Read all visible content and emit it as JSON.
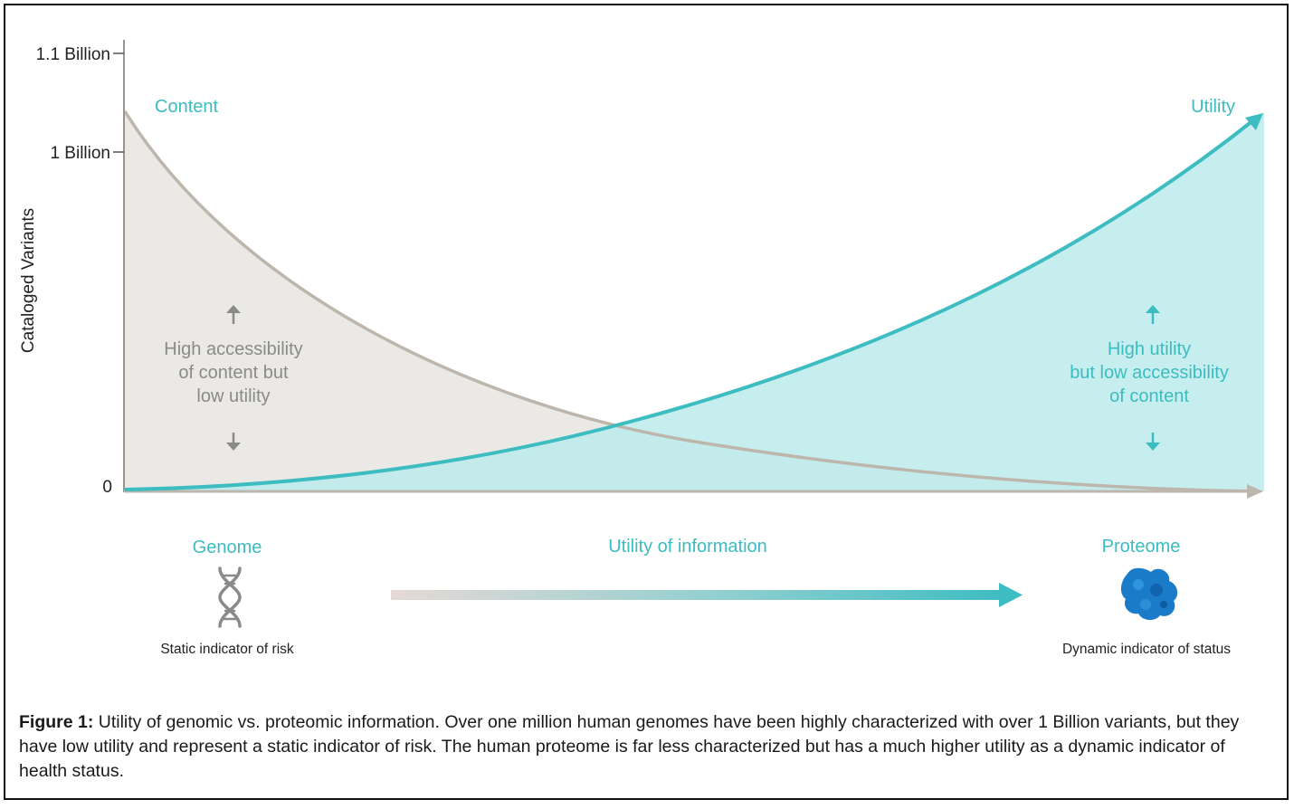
{
  "chart": {
    "y_axis_label": "Cataloged Variants",
    "y_ticks": [
      "1.1 Billion",
      "1 Billion",
      "0"
    ],
    "series": [
      {
        "name": "Content",
        "trend": "decreasing",
        "color": "#b9b3aa",
        "fill": "#ebe9e5"
      },
      {
        "name": "Utility",
        "trend": "increasing",
        "color": "#3dbcc1",
        "fill": "#bdebec"
      }
    ],
    "left_annotation": {
      "lines": [
        "High accessibility",
        "of content but",
        "low utility"
      ],
      "color": "#8a8a8a"
    },
    "right_annotation": {
      "lines": [
        "High utility",
        "but low accessibility",
        "of content"
      ],
      "color": "#3bbcc0"
    }
  },
  "bottom": {
    "genome": {
      "label": "Genome",
      "sub": "Static indicator of risk",
      "icon": "dna-icon"
    },
    "middle": {
      "label": "Utility of information",
      "icon": "gradient-arrow"
    },
    "proteome": {
      "label": "Proteome",
      "sub": "Dynamic indicator of status",
      "icon": "protein-icon"
    }
  },
  "caption": {
    "lead": "Figure 1:",
    "text": " Utility of genomic vs. proteomic information. Over one million human genomes have been highly characterized with over 1 Billion variants, but they have low utility and represent a static indicator of risk. The human proteome is far less characterized but has a much higher utility as a dynamic indicator of health status."
  }
}
